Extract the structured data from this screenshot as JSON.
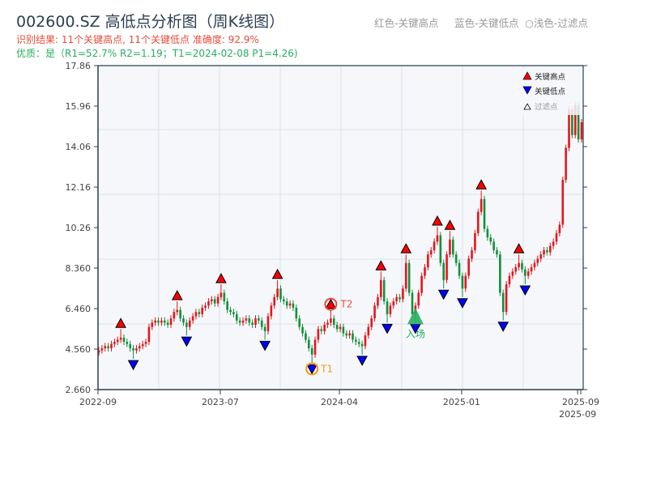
{
  "header": {
    "title": "002600.SZ 高低点分析图（周K线图）",
    "result_line": "识别结果: 11个关键高点, 11个关键低点  准确度: 92.9%",
    "quality_line": "优质：是（R1=52.7%  R2=1.19；T1=2024-02-08 P1=4.26)",
    "legend_red": "红色-关键高点",
    "legend_blue": "蓝色-关键低点",
    "legend_filtered": "○浅色-过滤点"
  },
  "colors": {
    "up": "#e8141c",
    "down": "#12903a",
    "high": "#ff0000",
    "low": "#0000ff",
    "t1": "#f39c12",
    "t2": "#e74c3c",
    "entry": "#27ae60",
    "title": "#2c3e50"
  },
  "chart_data": {
    "type": "candlestick",
    "title": "002600.SZ 高低点分析图（周K线图）",
    "ylim": [
      2.66,
      17.86
    ],
    "yticks": [
      "17.86",
      "15.96",
      "14.06",
      "12.16",
      "10.26",
      "8.360",
      "6.460",
      "4.560",
      "2.660"
    ],
    "ytick_values": [
      17.86,
      15.96,
      14.06,
      12.16,
      10.26,
      8.36,
      6.46,
      4.56,
      2.66
    ],
    "xticks": [
      {
        "label": "2022-09",
        "index": 0
      },
      {
        "label": "2023-07",
        "index": 39
      },
      {
        "label": "2024-04",
        "index": 77
      },
      {
        "label": "2025-01",
        "index": 116
      },
      {
        "label": "2025-09",
        "index": 154
      },
      {
        "label": "2025-09",
        "index": 153
      }
    ],
    "closes": [
      4.5,
      4.6,
      4.7,
      4.6,
      4.8,
      4.9,
      5.0,
      5.1,
      4.9,
      4.8,
      4.6,
      4.5,
      4.6,
      4.7,
      4.8,
      4.9,
      5.6,
      5.8,
      5.9,
      5.8,
      5.9,
      5.8,
      5.7,
      6.0,
      6.3,
      6.4,
      6.0,
      5.8,
      5.6,
      5.9,
      6.1,
      6.3,
      6.2,
      6.5,
      6.6,
      6.8,
      6.9,
      6.7,
      7.0,
      7.2,
      6.8,
      6.4,
      6.3,
      6.2,
      5.9,
      5.8,
      5.9,
      6.0,
      5.8,
      5.7,
      6.0,
      5.9,
      5.6,
      5.4,
      6.1,
      6.6,
      7.0,
      7.4,
      6.9,
      6.8,
      6.6,
      6.7,
      6.5,
      6.0,
      5.6,
      5.3,
      5.0,
      4.6,
      4.3,
      5.0,
      5.5,
      5.4,
      5.7,
      5.8,
      6.0,
      5.7,
      5.5,
      5.6,
      5.3,
      5.2,
      5.3,
      5.0,
      4.9,
      4.8,
      4.7,
      5.2,
      5.6,
      6.0,
      6.6,
      7.0,
      7.8,
      6.8,
      6.2,
      6.6,
      6.8,
      7.0,
      6.9,
      7.4,
      8.6,
      7.2,
      6.2,
      6.6,
      7.2,
      8.0,
      8.4,
      9.0,
      9.2,
      9.6,
      9.9,
      8.6,
      7.8,
      9.0,
      9.7,
      9.0,
      8.6,
      8.0,
      7.4,
      8.0,
      8.8,
      9.2,
      10.0,
      11.0,
      11.6,
      10.2,
      9.8,
      9.6,
      9.2,
      9.0,
      7.2,
      6.3,
      7.6,
      8.0,
      8.2,
      8.4,
      8.6,
      8.3,
      8.0,
      8.2,
      8.4,
      8.6,
      8.8,
      9.0,
      9.2,
      9.1,
      9.4,
      9.6,
      10.0,
      10.4,
      12.5,
      14.0,
      15.8,
      14.6,
      16.0,
      14.4,
      15.2
    ],
    "key_high_indices": [
      7,
      25,
      39,
      57,
      74,
      90,
      98,
      108,
      112,
      122,
      134
    ],
    "key_low_indices": [
      11,
      28,
      53,
      68,
      84,
      92,
      101,
      110,
      116,
      129,
      136
    ],
    "annotations": {
      "t1": {
        "label": "T1",
        "index": 68
      },
      "t2": {
        "label": "T2",
        "index": 74
      },
      "entry": {
        "label": "入场",
        "index": 101
      }
    },
    "legend": {
      "position": "top-right",
      "items": [
        {
          "label": "关键高点",
          "marker": "triangle-up",
          "color": "#ff0000"
        },
        {
          "label": "关键低点",
          "marker": "triangle-down",
          "color": "#0000ff"
        },
        {
          "label": "过滤点",
          "marker": "triangle-up-hollow",
          "color": "#999999"
        }
      ]
    }
  }
}
